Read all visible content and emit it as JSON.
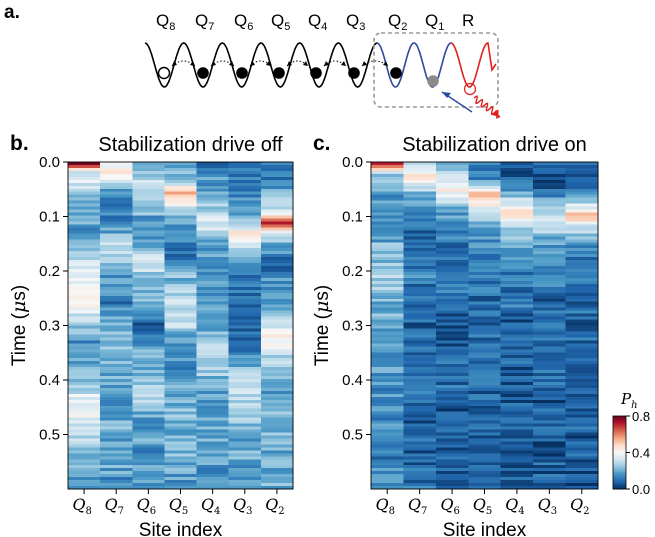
{
  "panel_a": {
    "label": "a.",
    "sites": [
      {
        "base": "Q",
        "sub": "8"
      },
      {
        "base": "Q",
        "sub": "7"
      },
      {
        "base": "Q",
        "sub": "6"
      },
      {
        "base": "Q",
        "sub": "5"
      },
      {
        "base": "Q",
        "sub": "4"
      },
      {
        "base": "Q",
        "sub": "3"
      },
      {
        "base": "Q",
        "sub": "2"
      },
      {
        "base": "Q",
        "sub": "1"
      },
      {
        "base": "R",
        "sub": ""
      }
    ],
    "colors": {
      "chain": "#000000",
      "q2_q1": "#2b4a9e",
      "reservoir": "#e02020",
      "box": "#999999",
      "hole": "#8a8a8a"
    }
  },
  "panels": [
    {
      "label": "b.",
      "title": "Stabilization drive off"
    },
    {
      "label": "c.",
      "title": "Stabilization drive on"
    }
  ],
  "colorbar": {
    "label_base": "P",
    "label_sub": "h",
    "ticks": [
      "0.8",
      "0.4",
      "0.0"
    ],
    "range": [
      0,
      0.8
    ],
    "colormap": "RdBu_r"
  },
  "chart_data": [
    {
      "type": "heatmap",
      "title": "Stabilization drive off",
      "xlabel": "Site index",
      "ylabel_base": "Time (",
      "ylabel_mu": "μ",
      "ylabel_tail": "s)",
      "categories": [
        {
          "base": "Q",
          "sub": "8"
        },
        {
          "base": "Q",
          "sub": "7"
        },
        {
          "base": "Q",
          "sub": "6"
        },
        {
          "base": "Q",
          "sub": "5"
        },
        {
          "base": "Q",
          "sub": "4"
        },
        {
          "base": "Q",
          "sub": "3"
        },
        {
          "base": "Q",
          "sub": "2"
        }
      ],
      "yticks": [
        "0.0",
        "0.1",
        "0.2",
        "0.3",
        "0.4",
        "0.5"
      ],
      "ylim": [
        0,
        0.6
      ],
      "color_range": [
        0,
        0.8
      ],
      "values_by_site": [
        [
          [
            0.0,
            0.8
          ],
          [
            0.02,
            0.35
          ],
          [
            0.05,
            0.28
          ],
          [
            0.1,
            0.18
          ],
          [
            0.15,
            0.22
          ],
          [
            0.2,
            0.35
          ],
          [
            0.24,
            0.44
          ],
          [
            0.28,
            0.32
          ],
          [
            0.33,
            0.18
          ],
          [
            0.4,
            0.25
          ],
          [
            0.45,
            0.38
          ],
          [
            0.5,
            0.3
          ],
          [
            0.55,
            0.2
          ],
          [
            0.6,
            0.2
          ]
        ],
        [
          [
            0.0,
            0.3
          ],
          [
            0.02,
            0.45
          ],
          [
            0.05,
            0.2
          ],
          [
            0.08,
            0.08
          ],
          [
            0.12,
            0.18
          ],
          [
            0.16,
            0.3
          ],
          [
            0.2,
            0.22
          ],
          [
            0.25,
            0.12
          ],
          [
            0.3,
            0.2
          ],
          [
            0.36,
            0.25
          ],
          [
            0.42,
            0.18
          ],
          [
            0.5,
            0.2
          ],
          [
            0.6,
            0.15
          ]
        ],
        [
          [
            0.0,
            0.2
          ],
          [
            0.02,
            0.25
          ],
          [
            0.05,
            0.3
          ],
          [
            0.1,
            0.18
          ],
          [
            0.14,
            0.15
          ],
          [
            0.18,
            0.34
          ],
          [
            0.22,
            0.2
          ],
          [
            0.27,
            0.18
          ],
          [
            0.3,
            0.1
          ],
          [
            0.35,
            0.22
          ],
          [
            0.42,
            0.25
          ],
          [
            0.5,
            0.18
          ],
          [
            0.6,
            0.15
          ]
        ],
        [
          [
            0.0,
            0.15
          ],
          [
            0.03,
            0.25
          ],
          [
            0.06,
            0.55
          ],
          [
            0.09,
            0.25
          ],
          [
            0.12,
            0.15
          ],
          [
            0.18,
            0.12
          ],
          [
            0.24,
            0.28
          ],
          [
            0.29,
            0.32
          ],
          [
            0.32,
            0.18
          ],
          [
            0.38,
            0.15
          ],
          [
            0.46,
            0.25
          ],
          [
            0.52,
            0.22
          ],
          [
            0.6,
            0.15
          ]
        ],
        [
          [
            0.0,
            0.1
          ],
          [
            0.02,
            0.15
          ],
          [
            0.05,
            0.2
          ],
          [
            0.08,
            0.25
          ],
          [
            0.12,
            0.32
          ],
          [
            0.16,
            0.18
          ],
          [
            0.2,
            0.12
          ],
          [
            0.26,
            0.15
          ],
          [
            0.3,
            0.2
          ],
          [
            0.34,
            0.3
          ],
          [
            0.38,
            0.24
          ],
          [
            0.44,
            0.18
          ],
          [
            0.5,
            0.2
          ],
          [
            0.6,
            0.15
          ]
        ],
        [
          [
            0.0,
            0.08
          ],
          [
            0.03,
            0.1
          ],
          [
            0.06,
            0.15
          ],
          [
            0.1,
            0.2
          ],
          [
            0.14,
            0.48
          ],
          [
            0.17,
            0.25
          ],
          [
            0.22,
            0.1
          ],
          [
            0.28,
            0.08
          ],
          [
            0.34,
            0.12
          ],
          [
            0.39,
            0.25
          ],
          [
            0.44,
            0.3
          ],
          [
            0.5,
            0.2
          ],
          [
            0.6,
            0.15
          ]
        ],
        [
          [
            0.0,
            0.15
          ],
          [
            0.03,
            0.12
          ],
          [
            0.06,
            0.22
          ],
          [
            0.09,
            0.3
          ],
          [
            0.11,
            0.75
          ],
          [
            0.13,
            0.3
          ],
          [
            0.18,
            0.1
          ],
          [
            0.24,
            0.15
          ],
          [
            0.28,
            0.25
          ],
          [
            0.32,
            0.42
          ],
          [
            0.36,
            0.3
          ],
          [
            0.42,
            0.2
          ],
          [
            0.5,
            0.22
          ],
          [
            0.6,
            0.18
          ]
        ]
      ]
    },
    {
      "type": "heatmap",
      "title": "Stabilization drive on",
      "xlabel": "Site index",
      "ylabel_base": "Time (",
      "ylabel_mu": "μ",
      "ylabel_tail": "s)",
      "categories": [
        {
          "base": "Q",
          "sub": "8"
        },
        {
          "base": "Q",
          "sub": "7"
        },
        {
          "base": "Q",
          "sub": "6"
        },
        {
          "base": "Q",
          "sub": "5"
        },
        {
          "base": "Q",
          "sub": "4"
        },
        {
          "base": "Q",
          "sub": "3"
        },
        {
          "base": "Q",
          "sub": "2"
        }
      ],
      "yticks": [
        "0.0",
        "0.1",
        "0.2",
        "0.3",
        "0.4",
        "0.5"
      ],
      "ylim": [
        0,
        0.6
      ],
      "color_range": [
        0,
        0.8
      ],
      "values_by_site": [
        [
          [
            0.0,
            0.8
          ],
          [
            0.02,
            0.3
          ],
          [
            0.06,
            0.15
          ],
          [
            0.12,
            0.18
          ],
          [
            0.2,
            0.28
          ],
          [
            0.26,
            0.22
          ],
          [
            0.32,
            0.16
          ],
          [
            0.4,
            0.18
          ],
          [
            0.5,
            0.15
          ],
          [
            0.6,
            0.12
          ]
        ],
        [
          [
            0.0,
            0.25
          ],
          [
            0.03,
            0.48
          ],
          [
            0.06,
            0.18
          ],
          [
            0.1,
            0.1
          ],
          [
            0.2,
            0.12
          ],
          [
            0.3,
            0.1
          ],
          [
            0.4,
            0.1
          ],
          [
            0.5,
            0.08
          ],
          [
            0.6,
            0.08
          ]
        ],
        [
          [
            0.0,
            0.12
          ],
          [
            0.03,
            0.3
          ],
          [
            0.05,
            0.45
          ],
          [
            0.08,
            0.2
          ],
          [
            0.15,
            0.1
          ],
          [
            0.25,
            0.1
          ],
          [
            0.35,
            0.08
          ],
          [
            0.5,
            0.08
          ],
          [
            0.6,
            0.08
          ]
        ],
        [
          [
            0.0,
            0.08
          ],
          [
            0.03,
            0.15
          ],
          [
            0.06,
            0.58
          ],
          [
            0.09,
            0.3
          ],
          [
            0.14,
            0.15
          ],
          [
            0.22,
            0.12
          ],
          [
            0.32,
            0.1
          ],
          [
            0.45,
            0.08
          ],
          [
            0.6,
            0.08
          ]
        ],
        [
          [
            0.0,
            0.06
          ],
          [
            0.04,
            0.1
          ],
          [
            0.07,
            0.3
          ],
          [
            0.09,
            0.45
          ],
          [
            0.12,
            0.25
          ],
          [
            0.2,
            0.12
          ],
          [
            0.3,
            0.08
          ],
          [
            0.45,
            0.07
          ],
          [
            0.6,
            0.07
          ]
        ],
        [
          [
            0.0,
            0.06
          ],
          [
            0.05,
            0.08
          ],
          [
            0.08,
            0.22
          ],
          [
            0.11,
            0.35
          ],
          [
            0.14,
            0.2
          ],
          [
            0.2,
            0.1
          ],
          [
            0.3,
            0.08
          ],
          [
            0.45,
            0.07
          ],
          [
            0.6,
            0.07
          ]
        ],
        [
          [
            0.0,
            0.1
          ],
          [
            0.04,
            0.1
          ],
          [
            0.07,
            0.2
          ],
          [
            0.1,
            0.55
          ],
          [
            0.12,
            0.3
          ],
          [
            0.17,
            0.12
          ],
          [
            0.25,
            0.08
          ],
          [
            0.4,
            0.07
          ],
          [
            0.6,
            0.07
          ]
        ]
      ]
    }
  ]
}
